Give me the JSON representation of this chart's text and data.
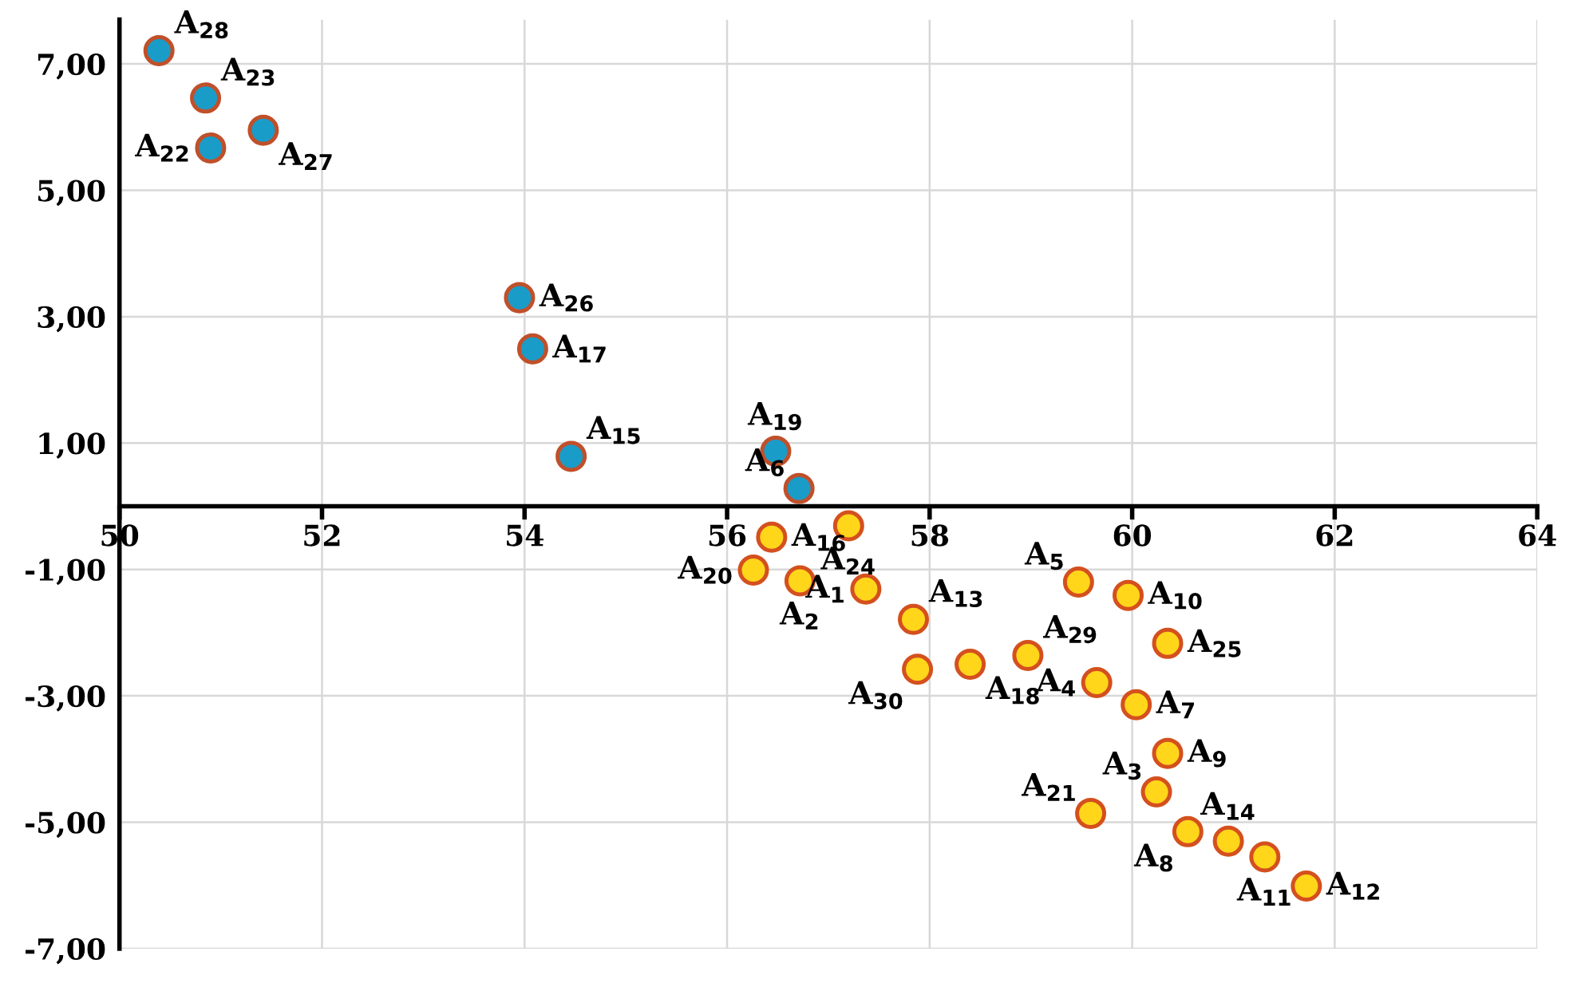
{
  "chart_data": {
    "type": "scatter",
    "xlim": [
      50,
      64
    ],
    "ylim": [
      -7,
      7.7
    ],
    "xticks": [
      50,
      52,
      54,
      56,
      58,
      60,
      62,
      64
    ],
    "yticks": [
      {
        "value": 7,
        "label": "7,00"
      },
      {
        "value": 5,
        "label": "5,00"
      },
      {
        "value": 3,
        "label": "3,00"
      },
      {
        "value": 1,
        "label": "1,00"
      },
      {
        "value": -1,
        "label": "-1,00"
      },
      {
        "value": -3,
        "label": "-3,00"
      },
      {
        "value": -5,
        "label": "-5,00"
      },
      {
        "value": -7,
        "label": "-7,00"
      }
    ],
    "grid": true,
    "marker": "circle",
    "legend": false,
    "series": [
      {
        "color": "#1a9cc9",
        "x": [
          50.39,
          50.85,
          50.9,
          51.42,
          53.95,
          54.08,
          54.46,
          56.48,
          56.71
        ],
        "values": [
          7.21,
          6.46,
          5.67,
          5.95,
          3.3,
          2.49,
          0.79,
          0.87,
          0.28
        ]
      },
      {
        "color": "#ffd61a",
        "x": [
          57.2,
          56.44,
          56.26,
          56.72,
          57.37,
          57.84,
          57.88,
          58.4,
          58.97,
          59.47,
          59.96,
          60.35,
          59.65,
          60.04,
          60.35,
          60.24,
          59.59,
          60.55,
          60.95,
          61.31,
          61.72
        ],
        "values": [
          -0.31,
          -0.49,
          -1.01,
          -1.18,
          -1.31,
          -1.79,
          -2.58,
          -2.5,
          -2.36,
          -1.2,
          -1.41,
          -2.17,
          -2.79,
          -3.14,
          -3.91,
          -4.52,
          -4.86,
          -5.15,
          -5.3,
          -5.55,
          -6.01
        ]
      }
    ],
    "annotations": [
      {
        "text": "A$_{28}$",
        "x": 50.39,
        "y": 7.21
      },
      {
        "text": "A$_{23}$",
        "x": 50.85,
        "y": 6.46
      },
      {
        "text": "A$_{22}$",
        "x": 50.9,
        "y": 5.67
      },
      {
        "text": "A$_{27}$",
        "x": 51.42,
        "y": 5.95
      },
      {
        "text": "A$_{26}$",
        "x": 53.95,
        "y": 3.3
      },
      {
        "text": "A$_{17}$",
        "x": 54.08,
        "y": 2.49
      },
      {
        "text": "A$_{15}$",
        "x": 54.46,
        "y": 0.79
      },
      {
        "text": "A$_{19}$",
        "x": 56.48,
        "y": 0.87
      },
      {
        "text": "A$_{6}$",
        "x": 56.71,
        "y": 0.28
      },
      {
        "text": "A$_{24}$",
        "x": 57.2,
        "y": -0.31
      },
      {
        "text": "A$_{16}$",
        "x": 56.44,
        "y": -0.49
      },
      {
        "text": "A$_{20}$",
        "x": 56.26,
        "y": -1.01
      },
      {
        "text": "A$_{2}$",
        "x": 56.72,
        "y": -1.18
      },
      {
        "text": "A$_{1}$",
        "x": 57.37,
        "y": -1.31
      },
      {
        "text": "A$_{13}$",
        "x": 57.84,
        "y": -1.79
      },
      {
        "text": "A$_{30}$",
        "x": 57.88,
        "y": -2.58
      },
      {
        "text": "A$_{18}$",
        "x": 58.4,
        "y": -2.5
      },
      {
        "text": "A$_{29}$",
        "x": 58.97,
        "y": -2.36
      },
      {
        "text": "A$_{5}$",
        "x": 59.47,
        "y": -1.2
      },
      {
        "text": "A$_{10}$",
        "x": 59.96,
        "y": -1.41
      },
      {
        "text": "A$_{25}$",
        "x": 60.35,
        "y": -2.17
      },
      {
        "text": "A$_{4}$",
        "x": 59.65,
        "y": -2.79
      },
      {
        "text": "A$_{7}$",
        "x": 60.04,
        "y": -3.14
      },
      {
        "text": "A$_{9}$",
        "x": 60.35,
        "y": -3.91
      },
      {
        "text": "A$_{3}$",
        "x": 60.24,
        "y": -4.52
      },
      {
        "text": "A$_{21}$",
        "x": 59.59,
        "y": -4.86
      },
      {
        "text": "A$_{8}$",
        "x": 60.55,
        "y": -5.15
      },
      {
        "text": "A$_{14}$",
        "x": 60.95,
        "y": -5.3
      },
      {
        "text": "A$_{11}$",
        "x": 61.31,
        "y": -5.55
      },
      {
        "text": "A$_{12}$",
        "x": 61.72,
        "y": -6.01
      }
    ]
  }
}
